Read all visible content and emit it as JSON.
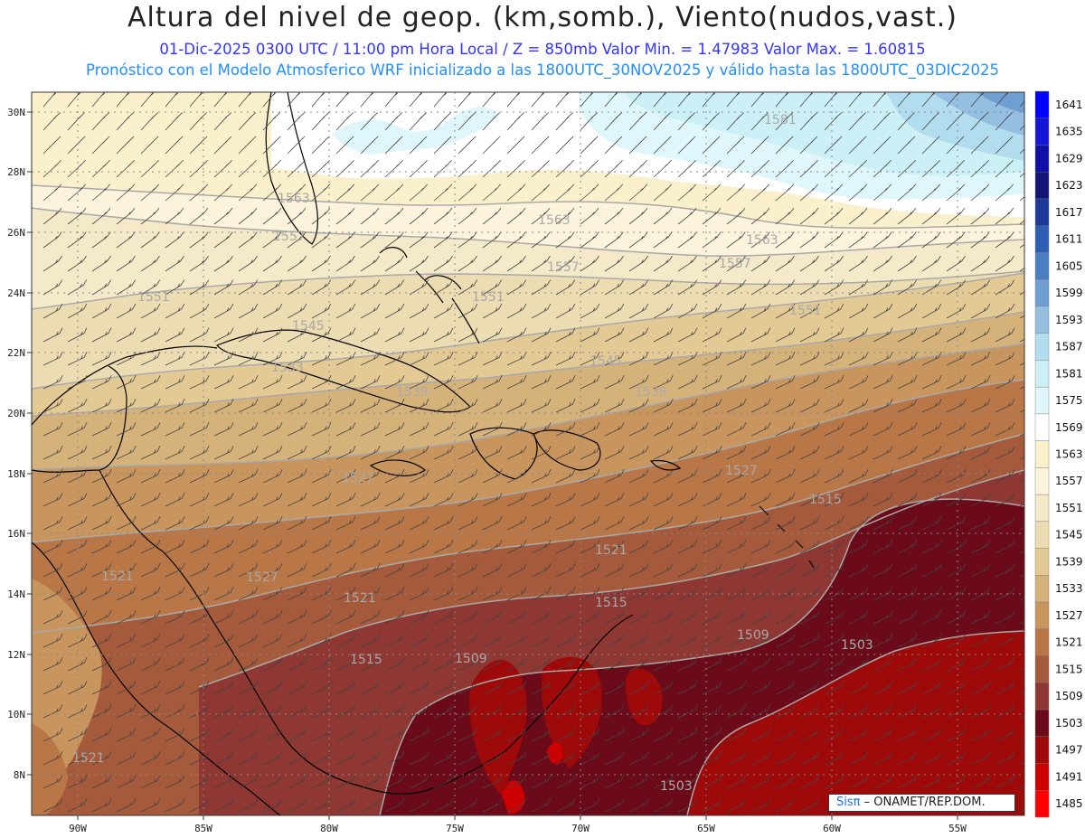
{
  "header": {
    "title": "Altura del nivel de geop. (km,somb.), Viento(nudos,vast.)",
    "subtitle": "01-Dic-2025  0300 UTC / 11:00 pm Hora Local / Z = 850mb   Valor Min. = 1.47983  Valor Max. = 1.60815",
    "forecast_line": "Pronóstico con el Modelo Atmosferico WRF inicializado a las 1800UTC_30NOV2025 y válido hasta las  1800UTC_03DIC2025"
  },
  "axes": {
    "lon_ticks": [
      "90W",
      "85W",
      "80W",
      "75W",
      "70W",
      "65W",
      "60W",
      "55W"
    ],
    "lat_ticks": [
      "30N",
      "28N",
      "26N",
      "24N",
      "22N",
      "20N",
      "18N",
      "16N",
      "14N",
      "12N",
      "10N",
      "8N"
    ]
  },
  "colorbar": {
    "levels": [
      "1641",
      "1635",
      "1629",
      "1623",
      "1617",
      "1611",
      "1605",
      "1599",
      "1593",
      "1587",
      "1581",
      "1575",
      "1569",
      "1563",
      "1557",
      "1551",
      "1545",
      "1539",
      "1533",
      "1527",
      "1521",
      "1515",
      "1509",
      "1503",
      "1497",
      "1491",
      "1485"
    ],
    "colors": [
      "#0000ff",
      "#1616d6",
      "#1010a8",
      "#141478",
      "#1d3a9a",
      "#2f5fb5",
      "#4a7fc2",
      "#6f9fd0",
      "#94bfe0",
      "#b2ddee",
      "#cdeff6",
      "#dff6fa",
      "#ffffff",
      "#fbf0cc",
      "#fbf3dc",
      "#f4e9c8",
      "#ecdcb1",
      "#e3c994",
      "#d6b27b",
      "#c8955e",
      "#b97747",
      "#a55a3b",
      "#8e3733",
      "#6b0b1a",
      "#9e0a0a",
      "#cc0000",
      "#ff0000"
    ]
  },
  "contour_labels": [
    {
      "text": "1581"
    },
    {
      "text": "1563"
    },
    {
      "text": "1563"
    },
    {
      "text": "1563"
    },
    {
      "text": "1557"
    },
    {
      "text": "1557"
    },
    {
      "text": "1557"
    },
    {
      "text": "1551"
    },
    {
      "text": "1551"
    },
    {
      "text": "1551"
    },
    {
      "text": "1545"
    },
    {
      "text": "1545"
    },
    {
      "text": "1539"
    },
    {
      "text": "1539"
    },
    {
      "text": "1533"
    },
    {
      "text": "1527"
    },
    {
      "text": "1527"
    },
    {
      "text": "1527"
    },
    {
      "text": "1521"
    },
    {
      "text": "1521"
    },
    {
      "text": "1521"
    },
    {
      "text": "1521"
    },
    {
      "text": "1515"
    },
    {
      "text": "1515"
    },
    {
      "text": "1515"
    },
    {
      "text": "1509"
    },
    {
      "text": "1509"
    },
    {
      "text": "1503"
    },
    {
      "text": "1503"
    }
  ],
  "credit": {
    "logo": "Sisπ",
    "org": " – ONAMET/REP.DOM."
  }
}
